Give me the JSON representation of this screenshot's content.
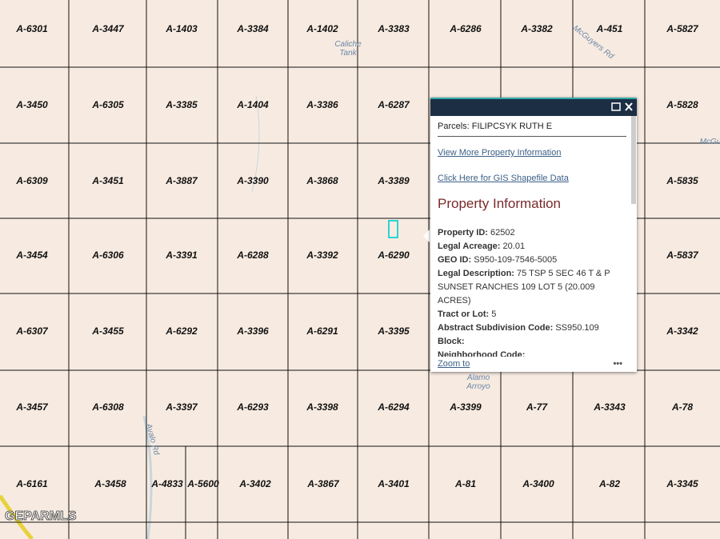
{
  "parcels": [
    [
      "A-6301",
      "A-3447",
      "A-1403",
      "A-3384",
      "A-1402",
      "A-3383",
      "A-6286",
      "A-3382",
      "A-451",
      "A-5827"
    ],
    [
      "A-3450",
      "A-6305",
      "A-3385",
      "A-1404",
      "A-3386",
      "A-6287",
      "A-5828"
    ],
    [
      "A-6309",
      "A-3451",
      "A-3887",
      "A-3390",
      "A-3868",
      "A-3389",
      "A-5835"
    ],
    [
      "A-3454",
      "A-6306",
      "A-3391",
      "A-6288",
      "A-3392",
      "A-6290",
      "A-5837"
    ],
    [
      "A-6307",
      "A-3455",
      "A-6292",
      "A-3396",
      "A-6291",
      "A-3395",
      "A-3342"
    ],
    [
      "A-3457",
      "A-6308",
      "A-3397",
      "A-6293",
      "A-3398",
      "A-6294",
      "A-3399",
      "A-77",
      "A-3343",
      "A-78"
    ],
    [
      "A-6161",
      "A-3458",
      "A-4833",
      "A-5600",
      "A-3402",
      "A-3867",
      "A-3401",
      "A-81",
      "A-3400",
      "A-82",
      "A-3345"
    ]
  ],
  "map_labels": [
    "Caliche Tank",
    "McGuyers Rd",
    "McGu",
    "Alamo Arroyo",
    "Avalo Rd"
  ],
  "watermark": "GEPARMLS",
  "popup": {
    "title": "Parcels: FILIPCSYK RUTH E",
    "links": [
      "View More Property Information",
      "Click Here for GIS Shapefile Data"
    ],
    "heading": "Property Information",
    "fields": [
      {
        "label": "Property ID:",
        "value": "62502"
      },
      {
        "label": "Legal Acreage:",
        "value": "20.01"
      },
      {
        "label": "GEO ID:",
        "value": "S950-109-7546-5005"
      },
      {
        "label": "Legal Description:",
        "value": "75 TSP 5 SEC 46 T & P SUNSET RANCHES 109 LOT 5 (20.009 ACRES)"
      },
      {
        "label": "Tract or Lot:",
        "value": "5"
      },
      {
        "label": "Abstract Subdivision Code:",
        "value": "SS950.109"
      },
      {
        "label": "Block:"
      },
      {
        "label": "Neighborhood Code:"
      }
    ],
    "footer": "Zoom to"
  }
}
